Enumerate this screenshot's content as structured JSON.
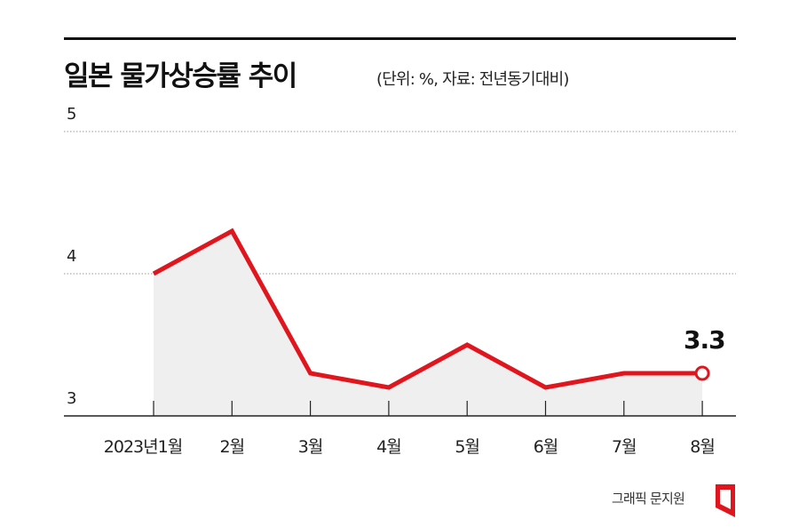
{
  "header": {
    "title": "일본 물가상승률 추이",
    "subtitle": "(단위: %, 자료: 전년동기대비)"
  },
  "credit": "그래픽 문지원",
  "colors": {
    "line": "#e0161e",
    "fill": "#efefef",
    "grid": "#999999",
    "text": "#111111"
  },
  "chart_data": {
    "type": "line",
    "title": "일본 물가상승률 추이",
    "subtitle": "(단위: %, 자료: 전년동기대비)",
    "xlabel": "",
    "ylabel": "%",
    "categories": [
      "2023년1월",
      "2월",
      "3월",
      "4월",
      "5월",
      "6월",
      "7월",
      "8월"
    ],
    "series": [
      {
        "name": "일본 물가상승률",
        "values": [
          4.0,
          4.3,
          3.3,
          3.2,
          3.5,
          3.2,
          3.3,
          3.3
        ]
      }
    ],
    "ylim": [
      3,
      5
    ],
    "yticks": [
      "3",
      "4",
      "5"
    ],
    "grid": true,
    "annotations": [
      {
        "x": "8월",
        "text": "3.3"
      }
    ],
    "legend": "none"
  }
}
